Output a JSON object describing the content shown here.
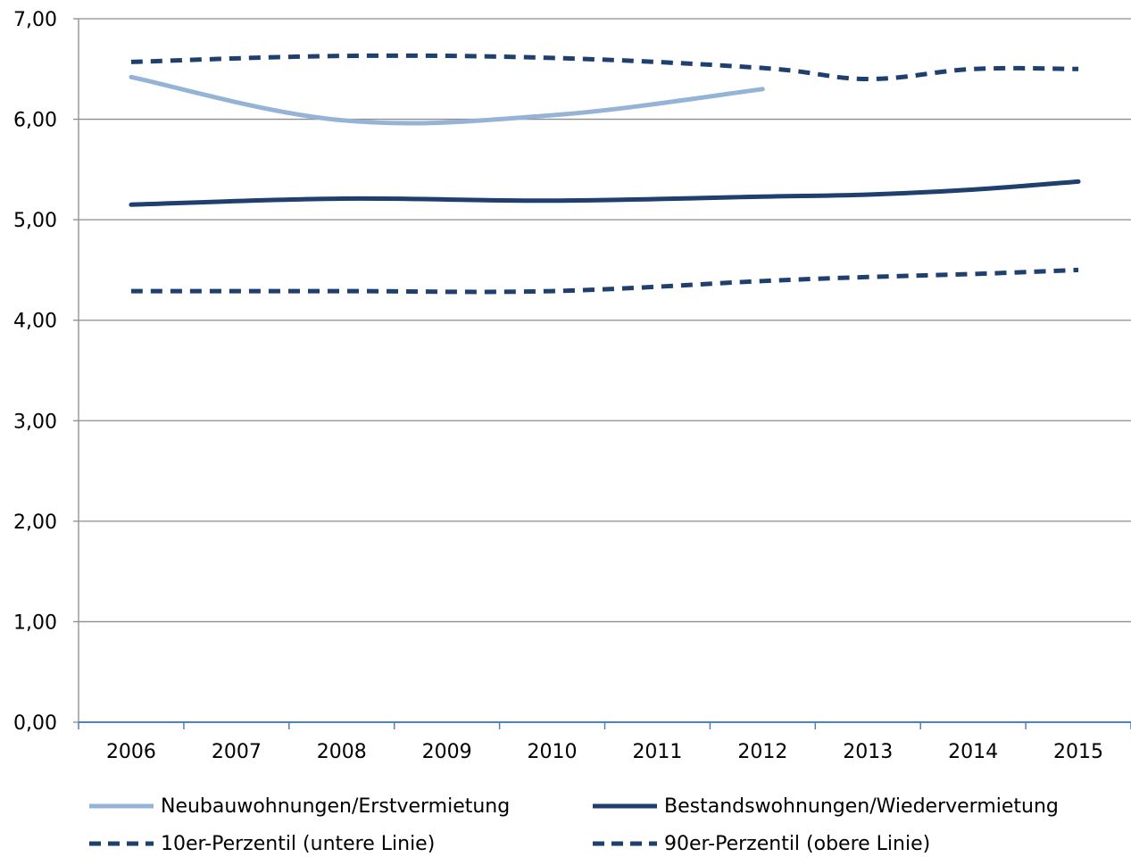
{
  "chart_data": {
    "type": "line",
    "categories": [
      "2006",
      "2007",
      "2008",
      "2009",
      "2010",
      "2011",
      "2012",
      "2013",
      "2014",
      "2015"
    ],
    "ylim": [
      0,
      7
    ],
    "yticks": [
      "0,00",
      "1,00",
      "2,00",
      "3,00",
      "4,00",
      "5,00",
      "6,00",
      "7,00"
    ],
    "grid": true,
    "legend_position": "bottom",
    "series": [
      {
        "name": "Neubauwohnungen/Erstvermietung",
        "color": "#95b3d7",
        "dashed": false,
        "values": [
          6.42,
          null,
          5.99,
          null,
          6.04,
          null,
          6.3,
          null,
          null,
          null
        ]
      },
      {
        "name": "Bestandswohnungen/Wiedervermietung",
        "color": "#1f3f6e",
        "dashed": false,
        "values": [
          5.15,
          null,
          5.21,
          null,
          5.19,
          null,
          5.23,
          5.25,
          5.3,
          5.38
        ]
      },
      {
        "name": "10er-Perzentil (untere Linie)",
        "color": "#1f3f6e",
        "dashed": true,
        "values": [
          4.29,
          null,
          4.29,
          null,
          4.29,
          null,
          4.39,
          4.43,
          4.46,
          4.5
        ]
      },
      {
        "name": "90er-Perzentil (obere Linie)",
        "color": "#1f3f6e",
        "dashed": true,
        "values": [
          6.57,
          null,
          6.63,
          null,
          6.61,
          null,
          6.51,
          6.4,
          6.5,
          6.5
        ]
      }
    ]
  }
}
